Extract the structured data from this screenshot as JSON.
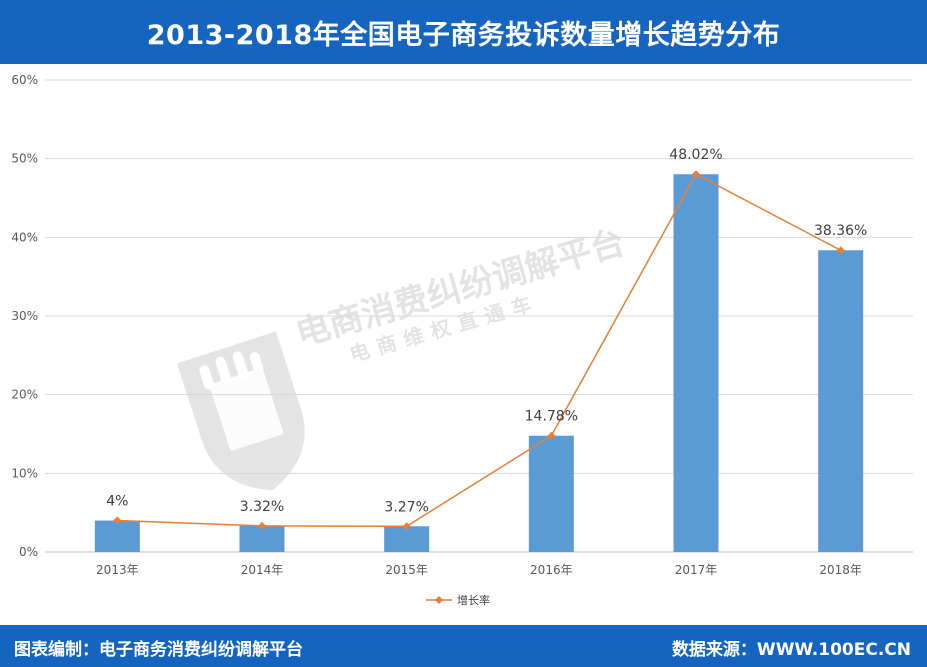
{
  "header": {
    "title": "2013-2018年全国电子商务投诉数量增长趋势分布"
  },
  "footer": {
    "left": "图表编制：电子商务消费纠纷调解平台",
    "right": "数据来源：WWW.100EC.CN"
  },
  "watermark": {
    "main": "电商消费纠纷调解平台",
    "sub": "电商维权直通车"
  },
  "colors": {
    "header": "#1565c0",
    "bar": "#5b9bd5",
    "line": "#ed7d31",
    "grid": "#d9d9d9"
  },
  "chart_data": {
    "type": "bar",
    "categories": [
      "2013年",
      "2014年",
      "2015年",
      "2016年",
      "2017年",
      "2018年"
    ],
    "values": [
      4,
      3.32,
      3.27,
      14.78,
      48.02,
      38.36
    ],
    "data_labels": [
      "4%",
      "3.32%",
      "3.27%",
      "14.78%",
      "48.02%",
      "38.36%"
    ],
    "overlay_line": {
      "name": "增长率",
      "values": [
        4,
        3.32,
        3.27,
        14.78,
        48.02,
        38.36
      ]
    },
    "ylim": [
      0,
      60
    ],
    "yticks": [
      "0%",
      "10%",
      "20%",
      "30%",
      "40%",
      "50%",
      "60%"
    ],
    "grid": true,
    "legend": {
      "position": "bottom",
      "entries": [
        "增长率"
      ]
    }
  }
}
